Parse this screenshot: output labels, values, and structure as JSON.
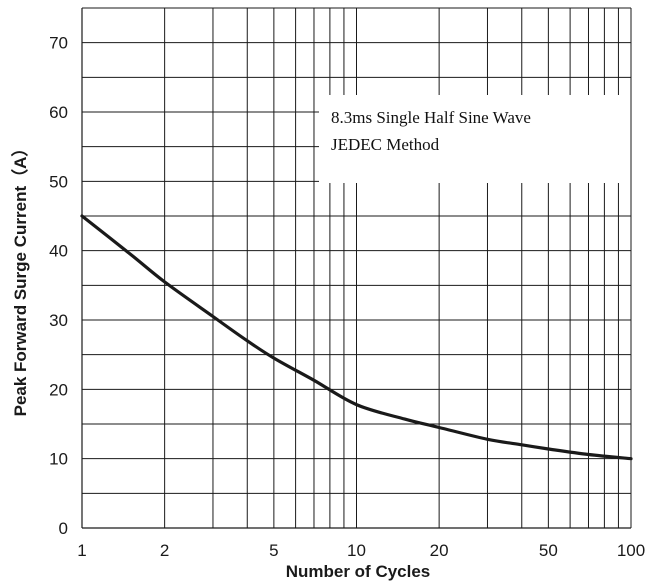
{
  "chart_data": {
    "type": "line",
    "title": "",
    "xlabel": "Number of Cycles",
    "ylabel": "Peak Forward Surge Current（A）",
    "x_scale": "log",
    "xlim": [
      1,
      100
    ],
    "ylim": [
      0,
      75
    ],
    "x_ticks": [
      1,
      2,
      5,
      10,
      20,
      50,
      100
    ],
    "y_ticks": [
      0,
      10,
      20,
      30,
      40,
      50,
      60,
      70
    ],
    "grid": true,
    "annotations": [
      "8.3ms Single Half Sine Wave",
      "JEDEC Method"
    ],
    "series": [
      {
        "x": [
          1,
          1.5,
          2,
          3,
          4,
          5,
          7,
          10,
          15,
          20,
          30,
          40,
          50,
          70,
          100
        ],
        "y": [
          45,
          39.5,
          35.5,
          30.5,
          27,
          24.5,
          21.3,
          17.8,
          15.7,
          14.5,
          12.8,
          12,
          11.4,
          10.6,
          10
        ]
      }
    ],
    "colors": {
      "line": "#1a1a1a",
      "grid": "#1a1a1a",
      "background": "#ffffff"
    }
  }
}
